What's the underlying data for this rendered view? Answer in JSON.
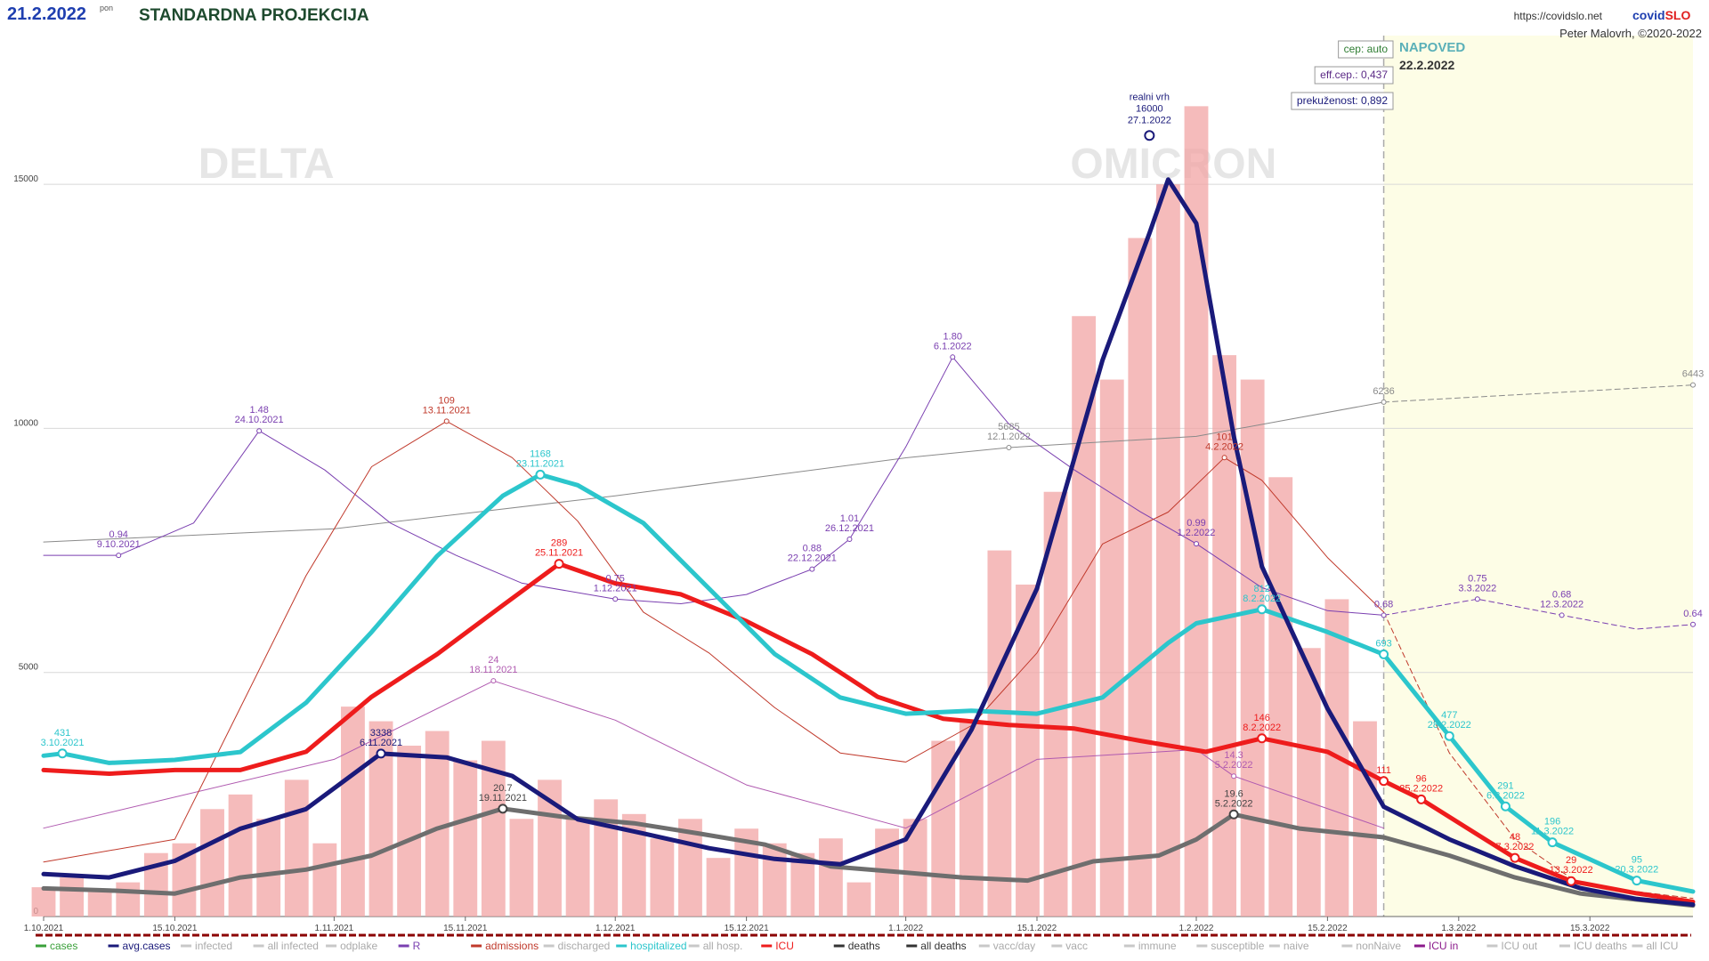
{
  "chart_data": {
    "type": "line",
    "date": "21.2.2022",
    "weekday": "pon",
    "title": "STANDARDNA PROJEKCIJA",
    "url": "https://covidslo.net",
    "brand": [
      "covid",
      "SLO"
    ],
    "author": "Peter Malovrh, ©2020-2022",
    "badges": [
      "cep: auto",
      "eff.cep.: 0,437",
      "prekuženost: 0,892"
    ],
    "forecast_label": "NAPOVED",
    "forecast_date": "22.2.2022",
    "forecast_from": "21.2.2022",
    "waves": [
      "DELTA",
      "OMICRON"
    ],
    "peak": {
      "label": "realni vrh",
      "value": 16000,
      "x": "27.1.2022"
    },
    "xlim": [
      "1.10.2021",
      "26.3.2022"
    ],
    "xticks": [
      "1.10.2021",
      "15.10.2021",
      "1.11.2021",
      "15.11.2021",
      "1.12.2021",
      "15.12.2021",
      "1.1.2022",
      "15.1.2022",
      "1.2.2022",
      "15.2.2022",
      "1.3.2022",
      "15.3.2022"
    ],
    "ylim": [
      0,
      17500
    ],
    "yticks": [
      0,
      5000,
      10000,
      15000
    ],
    "grid": true,
    "bars": {
      "name": "cases",
      "color": "#f2a4a4",
      "x": [
        "1.10.2021",
        "4.10.2021",
        "7.10.2021",
        "10.10.2021",
        "13.10.2021",
        "16.10.2021",
        "19.10.2021",
        "22.10.2021",
        "25.10.2021",
        "28.10.2021",
        "31.10.2021",
        "3.11.2021",
        "6.11.2021",
        "9.11.2021",
        "12.11.2021",
        "15.11.2021",
        "18.11.2021",
        "21.11.2021",
        "24.11.2021",
        "27.11.2021",
        "30.11.2021",
        "3.12.2021",
        "6.12.2021",
        "9.12.2021",
        "12.12.2021",
        "15.12.2021",
        "18.12.2021",
        "21.12.2021",
        "24.12.2021",
        "27.12.2021",
        "30.12.2021",
        "2.1.2022",
        "5.1.2022",
        "8.1.2022",
        "11.1.2022",
        "14.1.2022",
        "17.1.2022",
        "20.1.2022",
        "23.1.2022",
        "26.1.2022",
        "29.1.2022",
        "1.2.2022",
        "4.2.2022",
        "7.2.2022",
        "10.2.2022",
        "13.2.2022",
        "16.2.2022",
        "19.2.2022"
      ],
      "values": [
        600,
        800,
        500,
        700,
        1300,
        1500,
        2200,
        2500,
        2000,
        2800,
        1500,
        4300,
        4000,
        3500,
        3800,
        3200,
        3600,
        2000,
        2800,
        2000,
        2400,
        2100,
        1600,
        2000,
        1200,
        1800,
        1500,
        1300,
        1600,
        700,
        1800,
        2000,
        3600,
        4000,
        7500,
        6800,
        8700,
        12300,
        11000,
        13900,
        15000,
        16600,
        11500,
        11000,
        9000,
        5500,
        6500,
        4000
      ]
    },
    "series": [
      {
        "name": "all deaths",
        "color": "#8a8a8a",
        "width": 1,
        "lim": [
          0,
          10355
        ],
        "dash_forecast": true,
        "x": [
          "1.10.2021",
          "1.11.2021",
          "1.12.2021",
          "1.1.2022",
          "12.1.2022",
          "1.2.2022",
          "21.2.2022",
          "26.3.2022"
        ],
        "values": [
          4540,
          4700,
          5100,
          5560,
          5685,
          5820,
          6236,
          6443
        ]
      },
      {
        "name": "R",
        "color": "#7a3fb0",
        "width": 1,
        "lim": [
          -0.627,
          3.079
        ],
        "dash_forecast": true,
        "x": [
          "1.10.2021",
          "9.10.2021",
          "17.10.2021",
          "24.10.2021",
          "31.10.2021",
          "7.11.2021",
          "14.11.2021",
          "21.11.2021",
          "1.12.2021",
          "8.12.2021",
          "15.12.2021",
          "22.12.2021",
          "26.12.2021",
          "1.1.2022",
          "6.1.2022",
          "12.1.2022",
          "19.1.2022",
          "26.1.2022",
          "1.2.2022",
          "8.2.2022",
          "15.2.2022",
          "21.2.2022",
          "3.3.2022",
          "12.3.2022",
          "20.3.2022",
          "26.3.2022"
        ],
        "values": [
          0.94,
          0.94,
          1.08,
          1.48,
          1.31,
          1.08,
          0.94,
          0.82,
          0.75,
          0.73,
          0.77,
          0.88,
          1.01,
          1.41,
          1.8,
          1.51,
          1.31,
          1.13,
          0.99,
          0.8,
          0.7,
          0.68,
          0.75,
          0.68,
          0.62,
          0.64
        ]
      },
      {
        "name": "ICU in",
        "color": "#b05ab0",
        "width": 1,
        "lim": [
          0,
          87
        ],
        "dash_forecast": false,
        "x": [
          "1.10.2021",
          "1.11.2021",
          "18.11.2021",
          "1.12.2021",
          "15.12.2021",
          "1.1.2022",
          "15.1.2022",
          "1.2.2022",
          "5.2.2022",
          "21.2.2022"
        ],
        "values": [
          9,
          16,
          24,
          20,
          13.4,
          9,
          16,
          17,
          14.3,
          9
        ]
      },
      {
        "name": "admissions",
        "color": "#c0392b",
        "width": 1,
        "lim": [
          0,
          188
        ],
        "dash_forecast": true,
        "x": [
          "1.10.2021",
          "15.10.2021",
          "22.10.2021",
          "29.10.2021",
          "5.11.2021",
          "13.11.2021",
          "20.11.2021",
          "27.11.2021",
          "4.12.2021",
          "11.12.2021",
          "18.12.2021",
          "25.12.2021",
          "1.1.2022",
          "8.1.2022",
          "15.1.2022",
          "22.1.2022",
          "29.1.2022",
          "4.2.2022",
          "8.2.2022",
          "15.2.2022",
          "21.2.2022",
          "28.2.2022",
          "7.3.2022",
          "14.3.2022",
          "26.3.2022"
        ],
        "values": [
          12,
          17,
          46,
          75,
          99,
          109,
          101,
          87,
          67,
          58,
          46,
          36,
          34,
          42,
          58,
          82,
          89,
          101,
          96,
          79,
          67,
          36,
          17,
          7,
          4
        ]
      },
      {
        "name": "deaths",
        "color": "#6e6e6e",
        "width": 5,
        "lim": [
          0,
          164
        ],
        "dash_forecast": false,
        "x": [
          "1.10.2021",
          "8.10.2021",
          "15.10.2021",
          "22.10.2021",
          "29.10.2021",
          "5.11.2021",
          "12.11.2021",
          "19.11.2021",
          "26.11.2021",
          "3.12.2021",
          "10.12.2021",
          "17.12.2021",
          "24.12.2021",
          "31.12.2021",
          "7.1.2022",
          "14.1.2022",
          "21.1.2022",
          "28.1.2022",
          "1.2.2022",
          "5.2.2022",
          "12.2.2022",
          "21.2.2022",
          "28.2.2022",
          "7.3.2022",
          "14.3.2022",
          "26.3.2022"
        ],
        "values": [
          5.4,
          5.0,
          4.4,
          7.5,
          9.0,
          11.7,
          16.9,
          20.7,
          19.0,
          17.9,
          15.9,
          13.8,
          9.6,
          8.6,
          7.5,
          6.9,
          10.6,
          11.7,
          14.8,
          19.6,
          16.9,
          15.2,
          11.7,
          7.5,
          4.4,
          2.1
        ]
      },
      {
        "name": "ICU",
        "color": "#ee1c1c",
        "width": 5,
        "lim": [
          0,
          700
        ],
        "dash_forecast": false,
        "x": [
          "1.10.2021",
          "8.10.2021",
          "15.10.2021",
          "22.10.2021",
          "29.10.2021",
          "5.11.2021",
          "12.11.2021",
          "19.11.2021",
          "25.11.2021",
          "1.12.2021",
          "8.12.2021",
          "15.12.2021",
          "22.12.2021",
          "29.12.2021",
          "5.1.2022",
          "12.1.2022",
          "19.1.2022",
          "26.1.2022",
          "2.2.2022",
          "8.2.2022",
          "15.2.2022",
          "21.2.2022",
          "25.2.2022",
          "7.3.2022",
          "13.3.2022",
          "20.3.2022",
          "26.3.2022"
        ],
        "values": [
          120,
          117,
          120,
          120,
          135,
          180,
          215,
          255,
          289,
          273,
          264,
          242,
          215,
          180,
          162,
          157,
          154,
          144,
          135,
          146,
          135,
          111,
          96,
          48,
          29,
          19,
          12
        ]
      },
      {
        "name": "hospitalized",
        "color": "#2cc6cc",
        "width": 5,
        "lim": [
          0,
          2258
        ],
        "dash_forecast": false,
        "x": [
          "1.10.2021",
          "3.10.2021",
          "8.10.2021",
          "15.10.2021",
          "22.10.2021",
          "29.10.2021",
          "5.11.2021",
          "12.11.2021",
          "19.11.2021",
          "23.11.2021",
          "27.11.2021",
          "4.12.2021",
          "11.12.2021",
          "18.12.2021",
          "25.12.2021",
          "1.1.2022",
          "8.1.2022",
          "15.1.2022",
          "22.1.2022",
          "29.1.2022",
          "1.2.2022",
          "8.2.2022",
          "15.2.2022",
          "21.2.2022",
          "28.2.2022",
          "6.3.2022",
          "11.3.2022",
          "20.3.2022",
          "26.3.2022"
        ],
        "values": [
          425,
          431,
          406,
          414,
          435,
          565,
          752,
          953,
          1112,
          1168,
          1140,
          1040,
          867,
          694,
          579,
          536,
          544,
          536,
          579,
          723,
          775,
          812,
          752,
          693,
          477,
          291,
          196,
          95,
          66
        ]
      },
      {
        "name": "avg.cases",
        "color": "#1a1a7a",
        "width": 5,
        "lim": [
          0,
          17500
        ],
        "dash_forecast": false,
        "x": [
          "1.10.2021",
          "8.10.2021",
          "15.10.2021",
          "22.10.2021",
          "29.10.2021",
          "6.11.2021",
          "13.11.2021",
          "20.11.2021",
          "27.11.2021",
          "4.12.2021",
          "11.12.2021",
          "18.12.2021",
          "25.12.2021",
          "1.1.2022",
          "8.1.2022",
          "15.1.2022",
          "22.1.2022",
          "27.1.2022",
          "29.1.2022",
          "1.2.2022",
          "5.2.2022",
          "8.2.2022",
          "15.2.2022",
          "21.2.2022",
          "28.2.2022",
          "7.3.2022",
          "14.3.2022",
          "20.3.2022",
          "26.3.2022"
        ],
        "values": [
          870,
          800,
          1140,
          1800,
          2200,
          3338,
          3260,
          2880,
          1990,
          1700,
          1400,
          1180,
          1070,
          1580,
          3820,
          6720,
          11400,
          14000,
          15100,
          14200,
          9840,
          7170,
          4260,
          2250,
          1580,
          1030,
          580,
          360,
          245
        ]
      }
    ],
    "annotations": [
      {
        "series": "hospitalized",
        "x": "3.10.2021",
        "label": "431",
        "show_x": true
      },
      {
        "series": "hospitalized",
        "x": "23.11.2021",
        "label": "1168",
        "show_x": true
      },
      {
        "series": "hospitalized",
        "x": "8.2.2022",
        "label": "812",
        "show_x": true
      },
      {
        "series": "hospitalized",
        "x": "21.2.2022",
        "label": "693",
        "show_x": false
      },
      {
        "series": "hospitalized",
        "x": "28.2.2022",
        "label": "477",
        "show_x": true
      },
      {
        "series": "hospitalized",
        "x": "6.3.2022",
        "label": "291",
        "show_x": true
      },
      {
        "series": "hospitalized",
        "x": "11.3.2022",
        "label": "196",
        "show_x": true
      },
      {
        "series": "hospitalized",
        "x": "20.3.2022",
        "label": "95",
        "show_x": true
      },
      {
        "series": "ICU",
        "x": "25.11.2021",
        "label": "289",
        "show_x": true
      },
      {
        "series": "ICU",
        "x": "8.2.2022",
        "label": "146",
        "show_x": true
      },
      {
        "series": "ICU",
        "x": "21.2.2022",
        "label": "111",
        "show_x": false
      },
      {
        "series": "ICU",
        "x": "25.2.2022",
        "label": "96",
        "show_x": true
      },
      {
        "series": "ICU",
        "x": "7.3.2022",
        "label": "48",
        "show_x": true
      },
      {
        "series": "ICU",
        "x": "13.3.2022",
        "label": "29",
        "show_x": true
      },
      {
        "series": "avg.cases",
        "x": "6.11.2021",
        "label": "3338",
        "show_x": true
      },
      {
        "series": "deaths",
        "x": "19.11.2021",
        "label": "20.7",
        "show_x": true
      },
      {
        "series": "deaths",
        "x": "5.2.2022",
        "label": "19.6",
        "show_x": true
      },
      {
        "series": "admissions",
        "x": "13.11.2021",
        "label": "109",
        "show_x": true
      },
      {
        "series": "admissions",
        "x": "4.2.2022",
        "label": "101",
        "show_x": true
      },
      {
        "series": "ICU in",
        "x": "18.11.2021",
        "label": "24",
        "show_x": true
      },
      {
        "series": "ICU in",
        "x": "5.2.2022",
        "label": "14.3",
        "show_x": true
      },
      {
        "series": "all deaths",
        "x": "12.1.2022",
        "label": "5685",
        "show_x": true
      },
      {
        "series": "all deaths",
        "x": "21.2.2022",
        "label": "6236",
        "show_x": false
      },
      {
        "series": "all deaths",
        "x": "26.3.2022",
        "label": "6443",
        "show_x": false
      },
      {
        "series": "R",
        "x": "9.10.2021",
        "label": "0.94",
        "show_x": true
      },
      {
        "series": "R",
        "x": "24.10.2021",
        "label": "1.48",
        "show_x": true
      },
      {
        "series": "R",
        "x": "1.12.2021",
        "label": "0.75",
        "show_x": true
      },
      {
        "series": "R",
        "x": "22.12.2021",
        "label": "0.88",
        "show_x": true
      },
      {
        "series": "R",
        "x": "26.12.2021",
        "label": "1.01",
        "show_x": true
      },
      {
        "series": "R",
        "x": "6.1.2022",
        "label": "1.80",
        "show_x": true
      },
      {
        "series": "R",
        "x": "1.2.2022",
        "label": "0.99",
        "show_x": true
      },
      {
        "series": "R",
        "x": "21.2.2022",
        "label": "0.68",
        "show_x": false
      },
      {
        "series": "R",
        "x": "3.3.2022",
        "label": "0.75",
        "show_x": true
      },
      {
        "series": "R",
        "x": "12.3.2022",
        "label": "0.68",
        "show_x": true
      },
      {
        "series": "R",
        "x": "26.3.2022",
        "label": "0.64",
        "show_x": false
      }
    ],
    "legend": [
      {
        "name": "cases",
        "color": "#3aa03a"
      },
      {
        "name": "avg.cases",
        "color": "#1a1a7a"
      },
      {
        "name": "infected",
        "color": "#c8c8c8"
      },
      {
        "name": "all infected",
        "color": "#c8c8c8"
      },
      {
        "name": "odplake",
        "color": "#c8c8c8"
      },
      {
        "name": "R",
        "color": "#7a3fb0"
      },
      {
        "name": "admissions",
        "color": "#c0392b"
      },
      {
        "name": "discharged",
        "color": "#c8c8c8"
      },
      {
        "name": "hospitalized",
        "color": "#2cc6cc"
      },
      {
        "name": "all hosp.",
        "color": "#c8c8c8"
      },
      {
        "name": "ICU",
        "color": "#ee1c1c"
      },
      {
        "name": "deaths",
        "color": "#333333"
      },
      {
        "name": "all deaths",
        "color": "#333333"
      },
      {
        "name": "vacc/day",
        "color": "#c8c8c8"
      },
      {
        "name": "vacc",
        "color": "#c8c8c8"
      },
      {
        "name": "immune",
        "color": "#c8c8c8"
      },
      {
        "name": "susceptible",
        "color": "#c8c8c8"
      },
      {
        "name": "naive",
        "color": "#c8c8c8"
      },
      {
        "name": "nonNaive",
        "color": "#c8c8c8"
      },
      {
        "name": "ICU in",
        "color": "#8b1a8b"
      },
      {
        "name": "ICU out",
        "color": "#c8c8c8"
      },
      {
        "name": "ICU deaths",
        "color": "#c8c8c8"
      },
      {
        "name": "all ICU",
        "color": "#c8c8c8"
      }
    ]
  }
}
